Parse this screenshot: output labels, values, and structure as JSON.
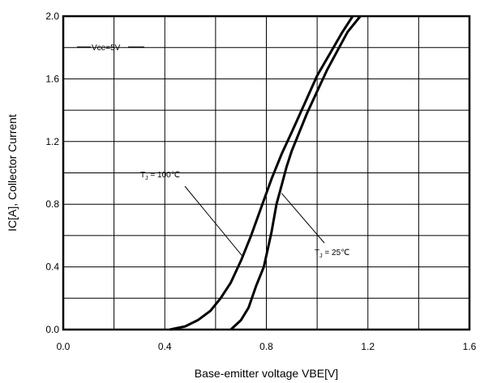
{
  "chart_data": {
    "type": "line",
    "title": "",
    "xlabel": "Base-emitter voltage VBE[V]",
    "ylabel": "IC[A], Collector Current",
    "xlim": [
      0.0,
      1.6
    ],
    "ylim": [
      0.0,
      2.0
    ],
    "x_ticks": [
      "0.0",
      "0.4",
      "0.8",
      "1.2",
      "1.6"
    ],
    "y_ticks": [
      "0.0",
      "0.4",
      "0.8",
      "1.2",
      "1.6",
      "2.0"
    ],
    "x_ticks_values": [
      0.0,
      0.4,
      0.8,
      1.2,
      1.6
    ],
    "y_ticks_values": [
      0.0,
      0.4,
      0.8,
      1.2,
      1.6,
      2.0
    ],
    "x_minor_step": 0.2,
    "y_minor_step": 0.2,
    "grid": true,
    "condition_label": "Vce=5V",
    "series": [
      {
        "name_main": "T",
        "name_sub": "J",
        "name_rest": " = 100℃",
        "x": [
          0.42,
          0.48,
          0.53,
          0.58,
          0.62,
          0.66,
          0.7,
          0.74,
          0.78,
          0.82,
          0.86,
          0.9,
          0.95,
          1.0,
          1.05,
          1.1,
          1.14
        ],
        "y": [
          0.0,
          0.02,
          0.06,
          0.12,
          0.2,
          0.3,
          0.44,
          0.6,
          0.78,
          0.96,
          1.12,
          1.26,
          1.44,
          1.62,
          1.76,
          1.9,
          2.0
        ]
      },
      {
        "name_main": "T",
        "name_sub": "J",
        "name_rest": " = 25℃",
        "x": [
          0.66,
          0.7,
          0.73,
          0.76,
          0.79,
          0.82,
          0.84,
          0.86,
          0.88,
          0.9,
          0.93,
          0.96,
          1.0,
          1.04,
          1.08,
          1.12,
          1.17
        ],
        "y": [
          0.0,
          0.06,
          0.14,
          0.28,
          0.4,
          0.62,
          0.8,
          0.92,
          1.04,
          1.14,
          1.26,
          1.38,
          1.52,
          1.66,
          1.78,
          1.9,
          2.0
        ]
      }
    ]
  }
}
